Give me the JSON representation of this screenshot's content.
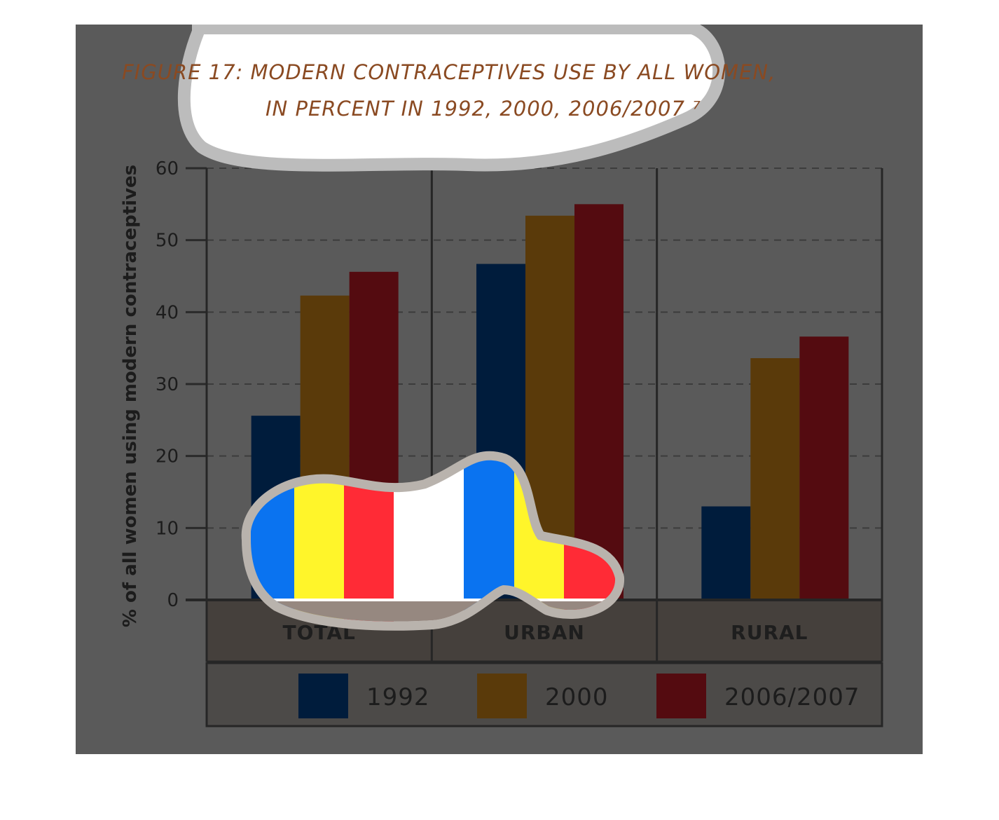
{
  "chart_data": {
    "type": "bar",
    "title_lines": [
      "FIGURE 17: MODERN CONTRACEPTIVES USE BY ALL WOMEN,",
      "IN PERCENT IN 1992, 2000, 2006/2007 ⁷"
    ],
    "ylabel": "% of all women using modern contraceptives",
    "ylim": [
      0,
      60
    ],
    "yticks": [
      "0",
      "10",
      "20",
      "30",
      "40",
      "50",
      "60"
    ],
    "categories": [
      "TOTAL",
      "URBAN",
      "RURAL"
    ],
    "series": [
      {
        "name": "1992",
        "color": "#001c3c",
        "values": [
          25.6,
          46.7,
          13.0
        ]
      },
      {
        "name": "2000",
        "color": "#5a3a0a",
        "values": [
          42.3,
          53.4,
          33.6
        ]
      },
      {
        "name": "2006/2007",
        "color": "#540b10",
        "values": [
          45.6,
          55.0,
          36.6
        ]
      }
    ],
    "grid": true,
    "legend_position": "bottom"
  }
}
